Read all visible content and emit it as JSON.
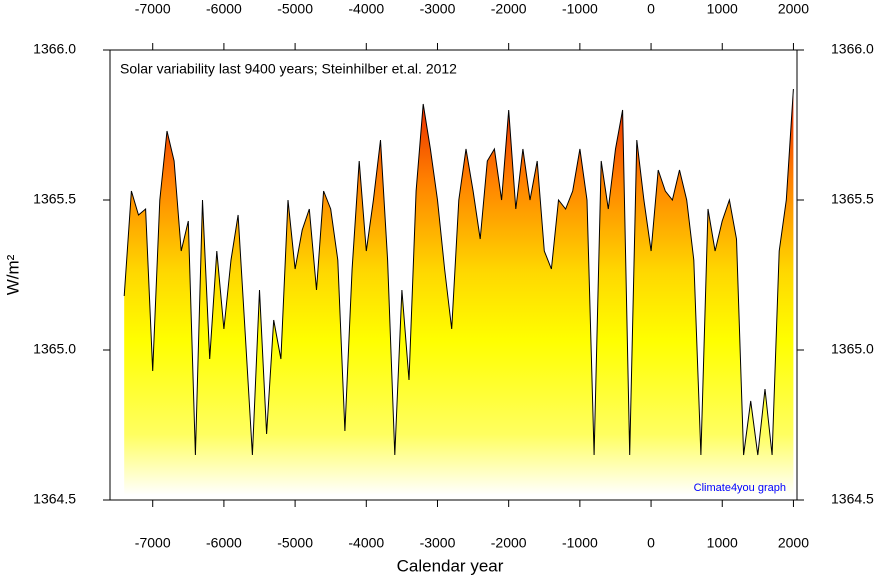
{
  "chart_data": {
    "type": "area",
    "title": "Solar variability last 9400 years; Steinhilber et.al. 2012",
    "annotation": "Climate4you graph",
    "xlabel": "Calendar year",
    "ylabel": "W/m²",
    "x": [
      -7400,
      -7300,
      -7200,
      -7100,
      -7000,
      -6900,
      -6800,
      -6700,
      -6600,
      -6500,
      -6400,
      -6300,
      -6200,
      -6100,
      -6000,
      -5900,
      -5800,
      -5700,
      -5600,
      -5500,
      -5400,
      -5300,
      -5200,
      -5100,
      -5000,
      -4900,
      -4800,
      -4700,
      -4600,
      -4500,
      -4400,
      -4300,
      -4200,
      -4100,
      -4000,
      -3900,
      -3800,
      -3700,
      -3600,
      -3500,
      -3400,
      -3300,
      -3200,
      -3100,
      -3000,
      -2900,
      -2800,
      -2700,
      -2600,
      -2500,
      -2400,
      -2300,
      -2200,
      -2100,
      -2000,
      -1900,
      -1800,
      -1700,
      -1600,
      -1500,
      -1400,
      -1300,
      -1200,
      -1100,
      -1000,
      -900,
      -800,
      -700,
      -600,
      -500,
      -400,
      -300,
      -200,
      -100,
      0,
      100,
      200,
      300,
      400,
      500,
      600,
      700,
      800,
      900,
      1000,
      1100,
      1200,
      1300,
      1400,
      1500,
      1600,
      1700,
      1800,
      1900,
      2000
    ],
    "values": [
      1365.18,
      1365.53,
      1365.45,
      1365.47,
      1364.93,
      1365.5,
      1365.73,
      1365.63,
      1365.33,
      1365.43,
      1364.65,
      1365.5,
      1364.97,
      1365.33,
      1365.07,
      1365.3,
      1365.45,
      1365.05,
      1364.65,
      1365.2,
      1364.72,
      1365.1,
      1364.97,
      1365.5,
      1365.27,
      1365.4,
      1365.47,
      1365.2,
      1365.53,
      1365.47,
      1365.3,
      1364.73,
      1365.27,
      1365.63,
      1365.33,
      1365.5,
      1365.7,
      1365.3,
      1364.65,
      1365.2,
      1364.9,
      1365.53,
      1365.82,
      1365.67,
      1365.5,
      1365.27,
      1365.07,
      1365.5,
      1365.67,
      1365.53,
      1365.37,
      1365.63,
      1365.67,
      1365.5,
      1365.8,
      1365.47,
      1365.67,
      1365.5,
      1365.63,
      1365.33,
      1365.27,
      1365.5,
      1365.47,
      1365.53,
      1365.67,
      1365.5,
      1364.65,
      1365.63,
      1365.47,
      1365.67,
      1365.8,
      1364.65,
      1365.7,
      1365.5,
      1365.33,
      1365.6,
      1365.53,
      1365.5,
      1365.6,
      1365.5,
      1365.3,
      1364.65,
      1365.47,
      1365.33,
      1365.43,
      1365.5,
      1365.37,
      1364.65,
      1364.83,
      1364.65,
      1364.87,
      1364.65,
      1365.33,
      1365.5,
      1365.87
    ],
    "color": "#000000",
    "xlim": [
      -7600,
      2050
    ],
    "xticks": [
      -7000,
      -6000,
      -5000,
      -4000,
      -3000,
      -2000,
      -1000,
      0,
      1000,
      2000
    ],
    "ylim": [
      1364.5,
      1366
    ],
    "yticks": [
      1364.5,
      {
        "value": 1365,
        "label": "1365.0"
      },
      1365.5,
      {
        "value": 1366,
        "label": "1366.0"
      }
    ],
    "y2lim": [
      1364.5,
      1366
    ],
    "y2ticks": [
      1364.5,
      {
        "value": 1365,
        "label": "1365.0"
      },
      1365.5,
      {
        "value": 1366,
        "label": "1366.0"
      }
    ]
  }
}
